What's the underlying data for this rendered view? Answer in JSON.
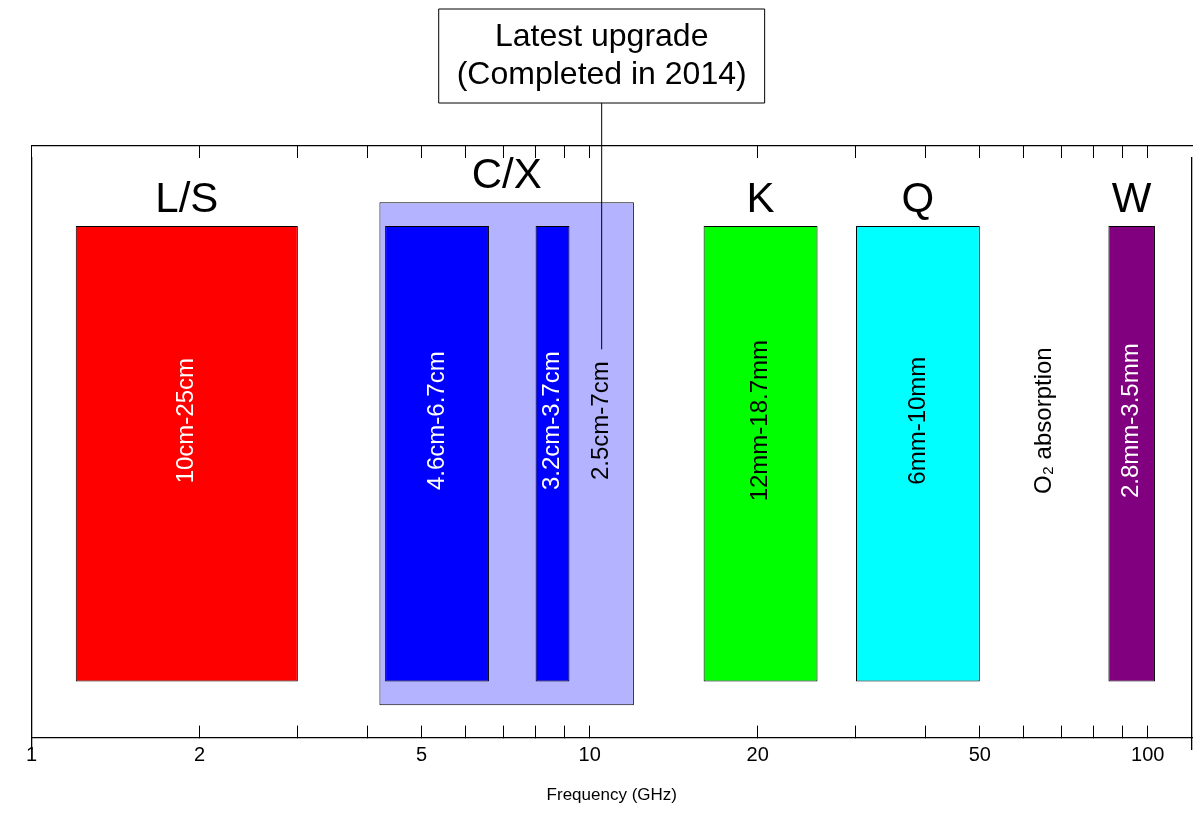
{
  "chart_data": {
    "type": "bar",
    "orientation": "horizontal",
    "xlabel": "Frequency (GHz)",
    "log": "x",
    "xlim": [
      1,
      120
    ],
    "xticks": [
      1,
      2,
      5,
      10,
      20,
      50,
      100
    ],
    "categories": [
      null
    ],
    "series": [
      {
        "name": "L/S",
        "color": "#ff0000",
        "base": [
          1.2
        ],
        "values": [
          1.8
        ]
      },
      {
        "name": "C/X",
        "color": "#b3b3ff",
        "base": [
          4.2
        ],
        "values": [
          7.8
        ]
      },
      {
        "color": "#0000ff",
        "base": [
          4.3
        ],
        "values": [
          2.3
        ]
      },
      {
        "color": "#0000ff",
        "base": [
          8
        ],
        "values": [
          1.2
        ]
      },
      {
        "name": "K",
        "color": "#00ff00",
        "base": [
          16
        ],
        "values": [
          9.6
        ]
      },
      {
        "name": "Q",
        "color": "#00ffff",
        "base": [
          30
        ],
        "values": [
          20
        ]
      },
      {
        "name": "W",
        "color": "#800080",
        "base": [
          85
        ],
        "values": [
          18
        ]
      }
    ],
    "annotations": [
      "10cm-25cm",
      "2.5cm-7cm",
      "4.6cm-6.7cm",
      "3.2cm-3.7cm",
      "12mm-18.7mm",
      "6mm-10mm",
      "2.8mm-3.5mm",
      "O₂ absorption",
      "Latest upgrade\n(Completed in 2014)"
    ]
  }
}
